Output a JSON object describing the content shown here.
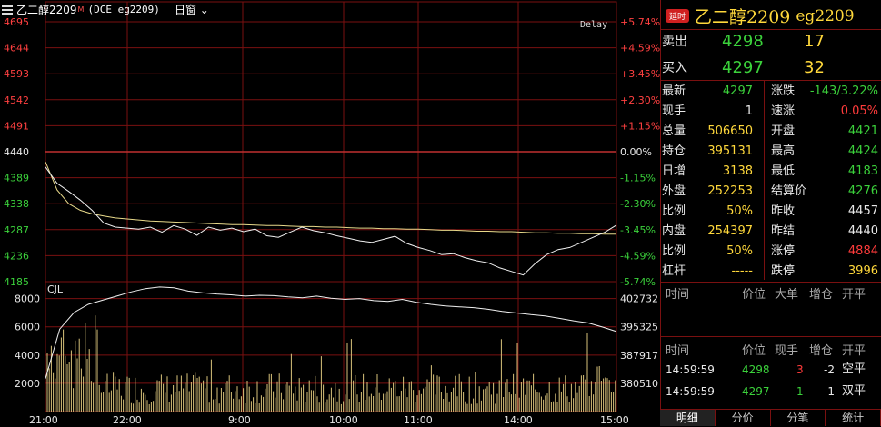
{
  "header": {
    "title": "乙二醇2209",
    "marker": "M",
    "contract": "(DCE eg2209)",
    "period": "日窗",
    "delay": "Delay"
  },
  "chart_data": {
    "type": "line",
    "price_ticks": [
      "4695",
      "4644",
      "4593",
      "4542",
      "4491",
      "4440",
      "4389",
      "4338",
      "4287",
      "4236",
      "4185"
    ],
    "pct_ticks": [
      "+5.74%",
      "+4.59%",
      "+3.45%",
      "+2.30%",
      "+1.15%",
      "0.00%",
      "-1.15%",
      "-2.30%",
      "-3.45%",
      "-4.59%",
      "-5.74%"
    ],
    "price_range": [
      4185,
      4695
    ],
    "prev_settle": 4440,
    "time_labels": [
      "21:00",
      "22:00",
      "9:00",
      "10:00",
      "11:00",
      "14:00",
      "15:00"
    ],
    "price_series": [
      4410,
      4378,
      4362,
      4345,
      4325,
      4300,
      4292,
      4290,
      4288,
      4292,
      4282,
      4295,
      4288,
      4276,
      4292,
      4286,
      4290,
      4283,
      4288,
      4275,
      4272,
      4282,
      4292,
      4285,
      4281,
      4275,
      4270,
      4265,
      4262,
      4268,
      4274,
      4260,
      4252,
      4246,
      4238,
      4240,
      4232,
      4226,
      4222,
      4212,
      4205,
      4198,
      4220,
      4238,
      4248,
      4252,
      4262,
      4272,
      4282,
      4296
    ],
    "avg_series": [
      4420,
      4365,
      4338,
      4325,
      4318,
      4314,
      4310,
      4308,
      4306,
      4304,
      4303,
      4302,
      4301,
      4300,
      4299,
      4298,
      4297,
      4297,
      4296,
      4295,
      4295,
      4294,
      4293,
      4293,
      4292,
      4292,
      4291,
      4290,
      4290,
      4289,
      4289,
      4288,
      4288,
      4287,
      4286,
      4286,
      4285,
      4284,
      4284,
      4283,
      4283,
      4282,
      4281,
      4281,
      4280,
      4280,
      4279,
      4279,
      4278,
      4278
    ],
    "volume_label": "CJL",
    "volume_ticks": [
      "8000",
      "6000",
      "4000",
      "2000"
    ],
    "volume_range": [
      0,
      9200
    ],
    "oi_ticks": [
      "402732",
      "395325",
      "387917",
      "380510"
    ],
    "oi_range": [
      376000,
      407500
    ],
    "oi_series": [
      384000,
      396000,
      400000,
      402000,
      403000,
      404000,
      405000,
      405800,
      406200,
      406000,
      405200,
      404800,
      404500,
      404300,
      404000,
      404200,
      404100,
      403800,
      403600,
      404000,
      403500,
      403200,
      403400,
      402900,
      402700,
      403200,
      402500,
      402000,
      401600,
      401400,
      401200,
      400800,
      400300,
      399900,
      399500,
      399200,
      398600,
      398000,
      397500,
      396500,
      395400
    ]
  },
  "quote": {
    "badge": "延时",
    "name": "乙二醇2209",
    "code": "eg2209",
    "sell_label": "卖出",
    "sell_price": "4298",
    "sell_qty": "17",
    "buy_label": "买入",
    "buy_price": "4297",
    "buy_qty": "32",
    "left": [
      {
        "label": "最新",
        "value": "4297"
      },
      {
        "label": "现手",
        "value": "1"
      },
      {
        "label": "总量",
        "value": "506650"
      },
      {
        "label": "持仓",
        "value": "395131"
      },
      {
        "label": "日增",
        "value": "3138"
      },
      {
        "label": "外盘",
        "value": "252253"
      },
      {
        "label": "比例",
        "value": "50%"
      },
      {
        "label": "内盘",
        "value": "254397"
      },
      {
        "label": "比例",
        "value": "50%"
      },
      {
        "label": "杠杆",
        "value": "-----"
      }
    ],
    "right": [
      {
        "label": "涨跌",
        "value": "-143/3.22%"
      },
      {
        "label": "速涨",
        "value": "0.05%"
      },
      {
        "label": "开盘",
        "value": "4421"
      },
      {
        "label": "最高",
        "value": "4424"
      },
      {
        "label": "最低",
        "value": "4183"
      },
      {
        "label": "结算价",
        "value": "4276"
      },
      {
        "label": "昨收",
        "value": "4457"
      },
      {
        "label": "昨结",
        "value": "4440"
      },
      {
        "label": "涨停",
        "value": "4884"
      },
      {
        "label": "跌停",
        "value": "3996"
      }
    ]
  },
  "ticks_header": [
    "时间",
    "价位",
    "大单",
    "增仓",
    "开平"
  ],
  "trades_header": [
    "时间",
    "价位",
    "现手",
    "增仓",
    "开平"
  ],
  "trades": [
    {
      "time": "14:59:59",
      "price": "4298",
      "qty": "3",
      "oi": "-2",
      "type": "空平"
    },
    {
      "time": "14:59:59",
      "price": "4297",
      "qty": "1",
      "oi": "-1",
      "type": "双平"
    }
  ],
  "tabs": [
    "明细",
    "分价",
    "分笔",
    "统计"
  ]
}
